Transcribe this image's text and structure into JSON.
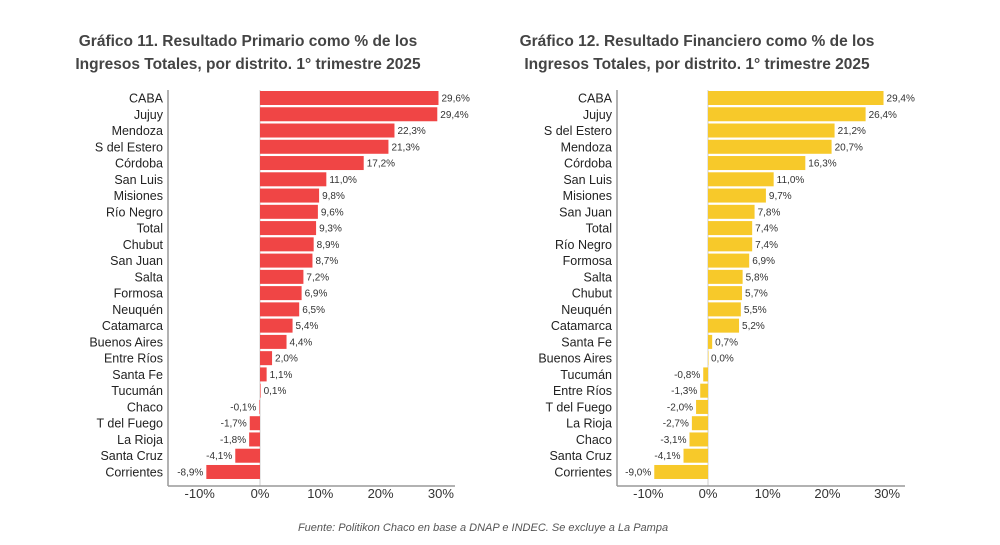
{
  "chart_data": [
    {
      "type": "bar",
      "orientation": "horizontal",
      "title": [
        "Gráfico 11. Resultado Primario como % de los",
        "Ingresos Totales, por distrito. 1° trimestre 2025"
      ],
      "categories": [
        "CABA",
        "Jujuy",
        "Mendoza",
        "S del Estero",
        "Córdoba",
        "San Luis",
        "Misiones",
        "Río Negro",
        "Total",
        "Chubut",
        "San Juan",
        "Salta",
        "Formosa",
        "Neuquén",
        "Catamarca",
        "Buenos Aires",
        "Entre Ríos",
        "Santa Fe",
        "Tucumán",
        "Chaco",
        "T del Fuego",
        "La Rioja",
        "Santa Cruz",
        "Corrientes"
      ],
      "values": [
        29.6,
        29.4,
        22.3,
        21.3,
        17.2,
        11.0,
        9.8,
        9.6,
        9.3,
        8.9,
        8.7,
        7.2,
        6.9,
        6.5,
        5.4,
        4.4,
        2.0,
        1.1,
        0.1,
        -0.1,
        -1.7,
        -1.8,
        -4.1,
        -8.9
      ],
      "xlim": [
        -10,
        30
      ],
      "ticks": [
        -10,
        0,
        10,
        20,
        30
      ],
      "tick_labels": [
        "-10%",
        "0%",
        "10%",
        "20%",
        "30%"
      ],
      "color": "#f04545"
    },
    {
      "type": "bar",
      "orientation": "horizontal",
      "title": [
        "Gráfico 12. Resultado Financiero como % de los",
        "Ingresos Totales, por distrito. 1° trimestre 2025"
      ],
      "categories": [
        "CABA",
        "Jujuy",
        "S del Estero",
        "Mendoza",
        "Córdoba",
        "San Luis",
        "Misiones",
        "San Juan",
        "Total",
        "Río Negro",
        "Formosa",
        "Salta",
        "Chubut",
        "Neuquén",
        "Catamarca",
        "Santa Fe",
        "Buenos Aires",
        "Tucumán",
        "Entre Ríos",
        "T del Fuego",
        "La Rioja",
        "Chaco",
        "Santa Cruz",
        "Corrientes"
      ],
      "values": [
        29.4,
        26.4,
        21.2,
        20.7,
        16.3,
        11.0,
        9.7,
        7.8,
        7.4,
        7.4,
        6.9,
        5.8,
        5.7,
        5.5,
        5.2,
        0.7,
        0.0,
        -0.8,
        -1.3,
        -2.0,
        -2.7,
        -3.1,
        -4.1,
        -9.0
      ],
      "xlim": [
        -10,
        30
      ],
      "ticks": [
        -10,
        0,
        10,
        20,
        30
      ],
      "tick_labels": [
        "-10%",
        "0%",
        "10%",
        "20%",
        "30%"
      ],
      "color": "#f7c92a"
    }
  ],
  "source": "Fuente: Politikon Chaco en base a DNAP e INDEC. Se excluye a La Pampa"
}
